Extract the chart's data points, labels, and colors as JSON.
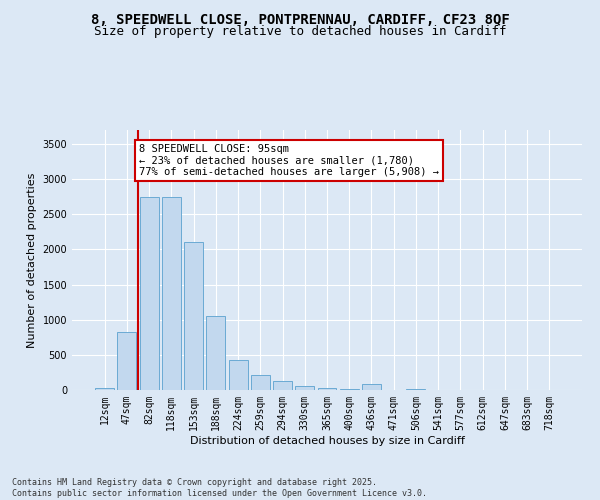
{
  "title_line1": "8, SPEEDWELL CLOSE, PONTPRENNAU, CARDIFF, CF23 8QF",
  "title_line2": "Size of property relative to detached houses in Cardiff",
  "xlabel": "Distribution of detached houses by size in Cardiff",
  "ylabel": "Number of detached properties",
  "categories": [
    "12sqm",
    "47sqm",
    "82sqm",
    "118sqm",
    "153sqm",
    "188sqm",
    "224sqm",
    "259sqm",
    "294sqm",
    "330sqm",
    "365sqm",
    "400sqm",
    "436sqm",
    "471sqm",
    "506sqm",
    "541sqm",
    "577sqm",
    "612sqm",
    "647sqm",
    "683sqm",
    "718sqm"
  ],
  "values": [
    30,
    820,
    2750,
    2750,
    2100,
    1050,
    430,
    220,
    130,
    55,
    30,
    20,
    90,
    5,
    10,
    5,
    5,
    2,
    2,
    2,
    2
  ],
  "bar_color": "#c2d8ee",
  "bar_edgecolor": "#6aaad4",
  "vline_color": "#cc0000",
  "property_bin_index": 2,
  "annotation_text": "8 SPEEDWELL CLOSE: 95sqm\n← 23% of detached houses are smaller (1,780)\n77% of semi-detached houses are larger (5,908) →",
  "annotation_box_facecolor": "white",
  "annotation_box_edgecolor": "#cc0000",
  "ylim_max": 3700,
  "yticks": [
    0,
    500,
    1000,
    1500,
    2000,
    2500,
    3000,
    3500
  ],
  "bg_color": "#dce8f5",
  "title_fontsize": 10,
  "subtitle_fontsize": 9,
  "axis_label_fontsize": 8,
  "tick_fontsize": 7,
  "annotation_fontsize": 7.5,
  "footer_fontsize": 6,
  "footer_line1": "Contains HM Land Registry data © Crown copyright and database right 2025.",
  "footer_line2": "Contains public sector information licensed under the Open Government Licence v3.0."
}
